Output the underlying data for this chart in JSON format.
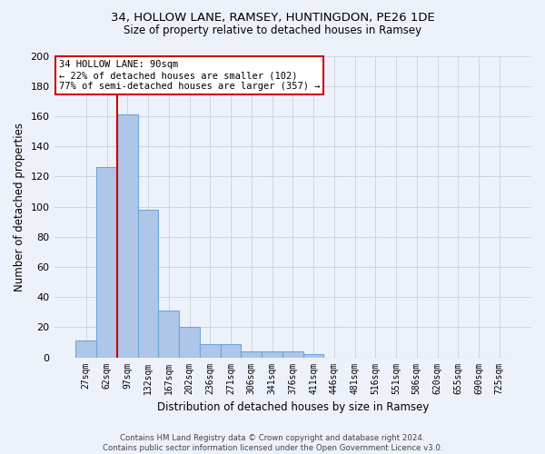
{
  "title1": "34, HOLLOW LANE, RAMSEY, HUNTINGDON, PE26 1DE",
  "title2": "Size of property relative to detached houses in Ramsey",
  "xlabel": "Distribution of detached houses by size in Ramsey",
  "ylabel": "Number of detached properties",
  "categories": [
    "27sqm",
    "62sqm",
    "97sqm",
    "132sqm",
    "167sqm",
    "202sqm",
    "236sqm",
    "271sqm",
    "306sqm",
    "341sqm",
    "376sqm",
    "411sqm",
    "446sqm",
    "481sqm",
    "516sqm",
    "551sqm",
    "586sqm",
    "620sqm",
    "655sqm",
    "690sqm",
    "725sqm"
  ],
  "values": [
    11,
    126,
    161,
    98,
    31,
    20,
    9,
    9,
    4,
    4,
    4,
    2,
    0,
    0,
    0,
    0,
    0,
    0,
    0,
    0,
    0
  ],
  "bar_color": "#aec6e8",
  "bar_edge_color": "#6aa8d8",
  "bg_color": "#edf2fa",
  "grid_color": "#c8d0dc",
  "vline_x_index": 2,
  "vline_color": "#cc0000",
  "annotation_text": "34 HOLLOW LANE: 90sqm\n← 22% of detached houses are smaller (102)\n77% of semi-detached houses are larger (357) →",
  "annotation_box_facecolor": "#ffffff",
  "annotation_box_edgecolor": "#cc0000",
  "ylim": [
    0,
    200
  ],
  "yticks": [
    0,
    20,
    40,
    60,
    80,
    100,
    120,
    140,
    160,
    180,
    200
  ],
  "footnote": "Contains HM Land Registry data © Crown copyright and database right 2024.\nContains public sector information licensed under the Open Government Licence v3.0."
}
